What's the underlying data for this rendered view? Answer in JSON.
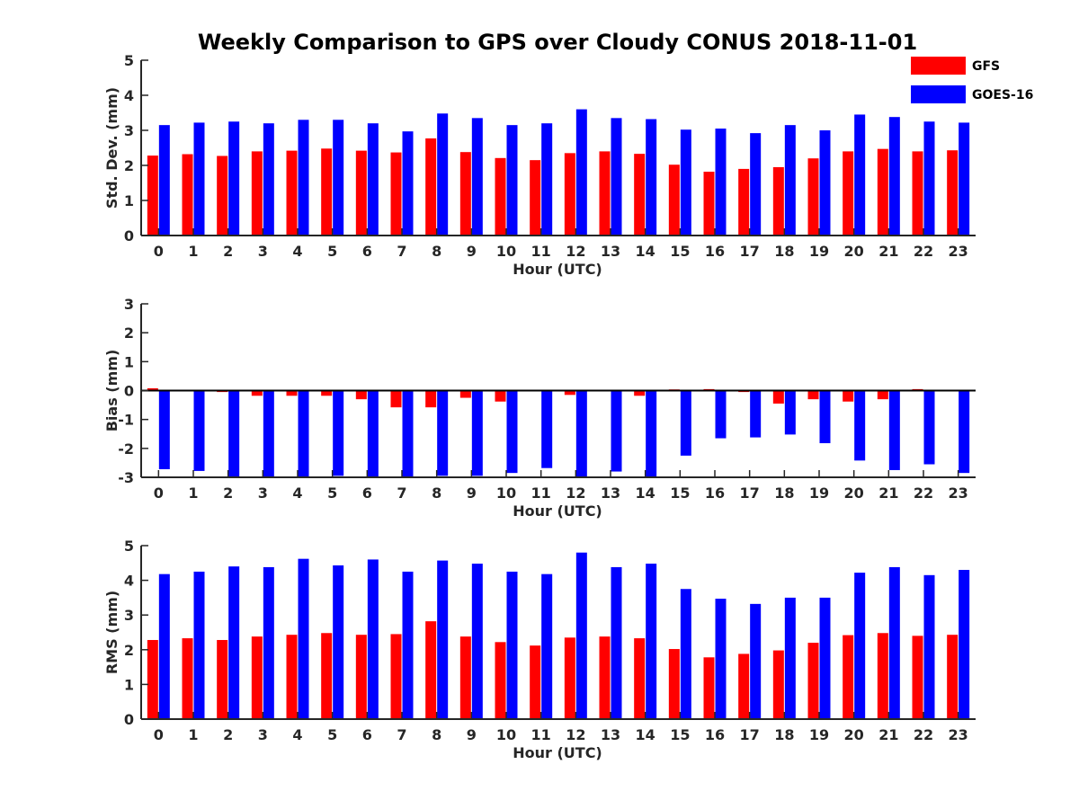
{
  "title": "Weekly Comparison to GPS over Cloudy CONUS 2018-11-01",
  "colors": {
    "GFS": "#ff0000",
    "GOES-16": "#0000ff"
  },
  "legend": {
    "placement": "top-right",
    "items": [
      "GFS",
      "GOES-16"
    ]
  },
  "chart_data": [
    {
      "type": "bar",
      "ylabel": "Std. Dev. (mm)",
      "xlabel": "Hour (UTC)",
      "ylim": [
        0,
        5
      ],
      "yticks": [
        "0",
        "1",
        "2",
        "3",
        "4",
        "5"
      ],
      "categories": [
        "0",
        "1",
        "2",
        "3",
        "4",
        "5",
        "6",
        "7",
        "8",
        "9",
        "10",
        "11",
        "12",
        "13",
        "14",
        "15",
        "16",
        "17",
        "18",
        "19",
        "20",
        "21",
        "22",
        "23"
      ],
      "series": [
        {
          "name": "GFS",
          "values": [
            2.28,
            2.32,
            2.27,
            2.4,
            2.42,
            2.48,
            2.42,
            2.37,
            2.77,
            2.38,
            2.21,
            2.15,
            2.35,
            2.4,
            2.33,
            2.02,
            1.82,
            1.9,
            1.95,
            2.2,
            2.4,
            2.47,
            2.4,
            2.43
          ]
        },
        {
          "name": "GOES-16",
          "values": [
            3.15,
            3.22,
            3.25,
            3.2,
            3.3,
            3.3,
            3.2,
            2.97,
            3.48,
            3.35,
            3.15,
            3.2,
            3.6,
            3.35,
            3.32,
            3.02,
            3.05,
            2.92,
            3.15,
            3.0,
            3.45,
            3.38,
            3.25,
            3.22
          ]
        }
      ]
    },
    {
      "type": "bar",
      "ylabel": "Bias (mm)",
      "xlabel": "Hour (UTC)",
      "ylim": [
        -3,
        3
      ],
      "yticks": [
        "-3",
        "-2",
        "-1",
        "0",
        "1",
        "2",
        "3"
      ],
      "categories": [
        "0",
        "1",
        "2",
        "3",
        "4",
        "5",
        "6",
        "7",
        "8",
        "9",
        "10",
        "11",
        "12",
        "13",
        "14",
        "15",
        "16",
        "17",
        "18",
        "19",
        "20",
        "21",
        "22",
        "23"
      ],
      "series": [
        {
          "name": "GFS",
          "values": [
            0.08,
            0.02,
            -0.05,
            -0.18,
            -0.18,
            -0.18,
            -0.3,
            -0.58,
            -0.58,
            -0.25,
            -0.38,
            -0.02,
            -0.15,
            -0.02,
            -0.18,
            0.04,
            0.05,
            -0.05,
            -0.45,
            -0.3,
            -0.38,
            -0.3,
            0.05,
            -0.02
          ]
        },
        {
          "name": "GOES-16",
          "values": [
            -2.72,
            -2.78,
            -3.0,
            -3.0,
            -3.0,
            -2.95,
            -3.0,
            -3.0,
            -2.95,
            -2.95,
            -2.85,
            -2.68,
            -3.0,
            -2.8,
            -3.0,
            -2.25,
            -1.65,
            -1.62,
            -1.52,
            -1.82,
            -2.42,
            -2.75,
            -2.55,
            -2.85
          ]
        }
      ]
    },
    {
      "type": "bar",
      "ylabel": "RMS (mm)",
      "xlabel": "Hour (UTC)",
      "ylim": [
        0,
        5
      ],
      "yticks": [
        "0",
        "1",
        "2",
        "3",
        "4",
        "5"
      ],
      "categories": [
        "0",
        "1",
        "2",
        "3",
        "4",
        "5",
        "6",
        "7",
        "8",
        "9",
        "10",
        "11",
        "12",
        "13",
        "14",
        "15",
        "16",
        "17",
        "18",
        "19",
        "20",
        "21",
        "22",
        "23"
      ],
      "series": [
        {
          "name": "GFS",
          "values": [
            2.28,
            2.33,
            2.28,
            2.38,
            2.43,
            2.48,
            2.43,
            2.45,
            2.82,
            2.38,
            2.22,
            2.12,
            2.35,
            2.38,
            2.33,
            2.02,
            1.78,
            1.88,
            1.98,
            2.2,
            2.42,
            2.48,
            2.4,
            2.43
          ]
        },
        {
          "name": "GOES-16",
          "values": [
            4.18,
            4.25,
            4.4,
            4.38,
            4.62,
            4.43,
            4.6,
            4.25,
            4.57,
            4.48,
            4.25,
            4.18,
            4.8,
            4.38,
            4.48,
            3.75,
            3.47,
            3.32,
            3.5,
            3.5,
            4.22,
            4.38,
            4.15,
            4.3
          ]
        }
      ]
    }
  ]
}
